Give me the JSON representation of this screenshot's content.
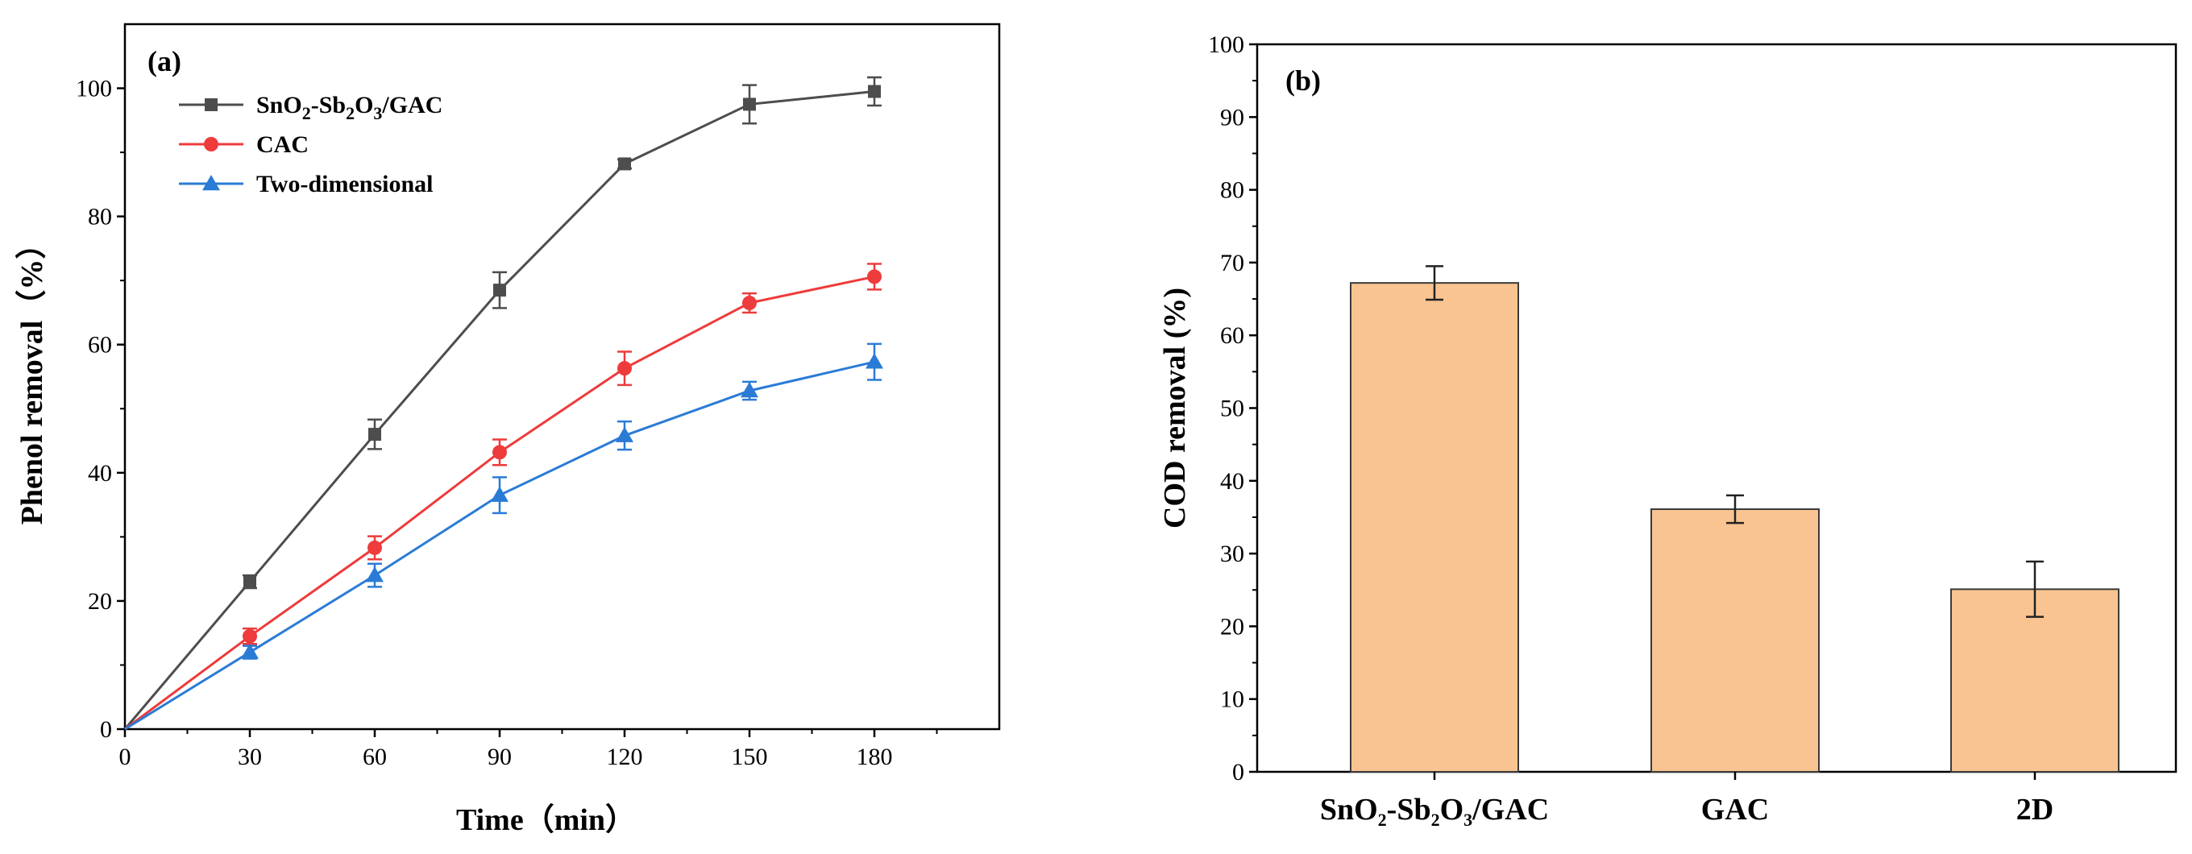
{
  "chart_data": [
    {
      "type": "line",
      "panel_label": "(a)",
      "xlabel": "Time（min）",
      "ylabel": "Phenol removal（%）",
      "xlim": [
        0,
        210
      ],
      "ylim": [
        0,
        110
      ],
      "xticks": [
        0,
        30,
        60,
        90,
        120,
        150,
        180
      ],
      "yticks": [
        0,
        20,
        40,
        60,
        80,
        100
      ],
      "legend_position": "top-left",
      "x": [
        0,
        30,
        60,
        90,
        120,
        150,
        180
      ],
      "series": [
        {
          "name": "SnO2-Sb2O3/GAC",
          "legend_parts": [
            {
              "t": "SnO"
            },
            {
              "t": "2",
              "sub": true
            },
            {
              "t": "-Sb"
            },
            {
              "t": "2",
              "sub": true
            },
            {
              "t": "O"
            },
            {
              "t": "3",
              "sub": true
            },
            {
              "t": "/GAC"
            }
          ],
          "color": "#4d4d4d",
          "marker": "square",
          "values": [
            0,
            23,
            46,
            68.5,
            88.2,
            97.5,
            99.5
          ],
          "errors": [
            0,
            1,
            2.3,
            2.8,
            0.7,
            3,
            2.2
          ]
        },
        {
          "name": "CAC",
          "legend_parts": [
            {
              "t": "CAC"
            }
          ],
          "color": "#ee3b3b",
          "marker": "circle",
          "values": [
            0,
            14.5,
            28.3,
            43.2,
            56.3,
            66.5,
            70.6
          ],
          "errors": [
            0,
            1.2,
            1.8,
            2,
            2.6,
            1.5,
            2
          ]
        },
        {
          "name": "Two-dimensional",
          "legend_parts": [
            {
              "t": "Two-dimensional"
            }
          ],
          "color": "#2a7bd6",
          "marker": "triangle",
          "values": [
            0,
            12,
            24,
            36.5,
            45.8,
            52.8,
            57.3
          ],
          "errors": [
            0,
            1,
            1.8,
            2.8,
            2.2,
            1.4,
            2.8
          ]
        }
      ]
    },
    {
      "type": "bar",
      "panel_label": "(b)",
      "xlabel": "",
      "ylabel": "COD removal (%)",
      "ylim": [
        0,
        100
      ],
      "yticks": [
        0,
        10,
        20,
        30,
        40,
        50,
        60,
        70,
        80,
        90,
        100
      ],
      "categories": [
        "SnO2-Sb2O3/GAC",
        "GAC",
        "2D"
      ],
      "category_parts": [
        [
          {
            "t": "SnO"
          },
          {
            "t": "2",
            "sub": true
          },
          {
            "t": "-Sb"
          },
          {
            "t": "2",
            "sub": true
          },
          {
            "t": "O"
          },
          {
            "t": "3",
            "sub": true
          },
          {
            "t": "/GAC"
          }
        ],
        [
          {
            "t": "GAC"
          }
        ],
        [
          {
            "t": "2D"
          }
        ]
      ],
      "values": [
        67.2,
        36.1,
        25.1
      ],
      "errors": [
        2.3,
        1.9,
        3.8
      ],
      "bar_color": "#f9c491"
    }
  ]
}
